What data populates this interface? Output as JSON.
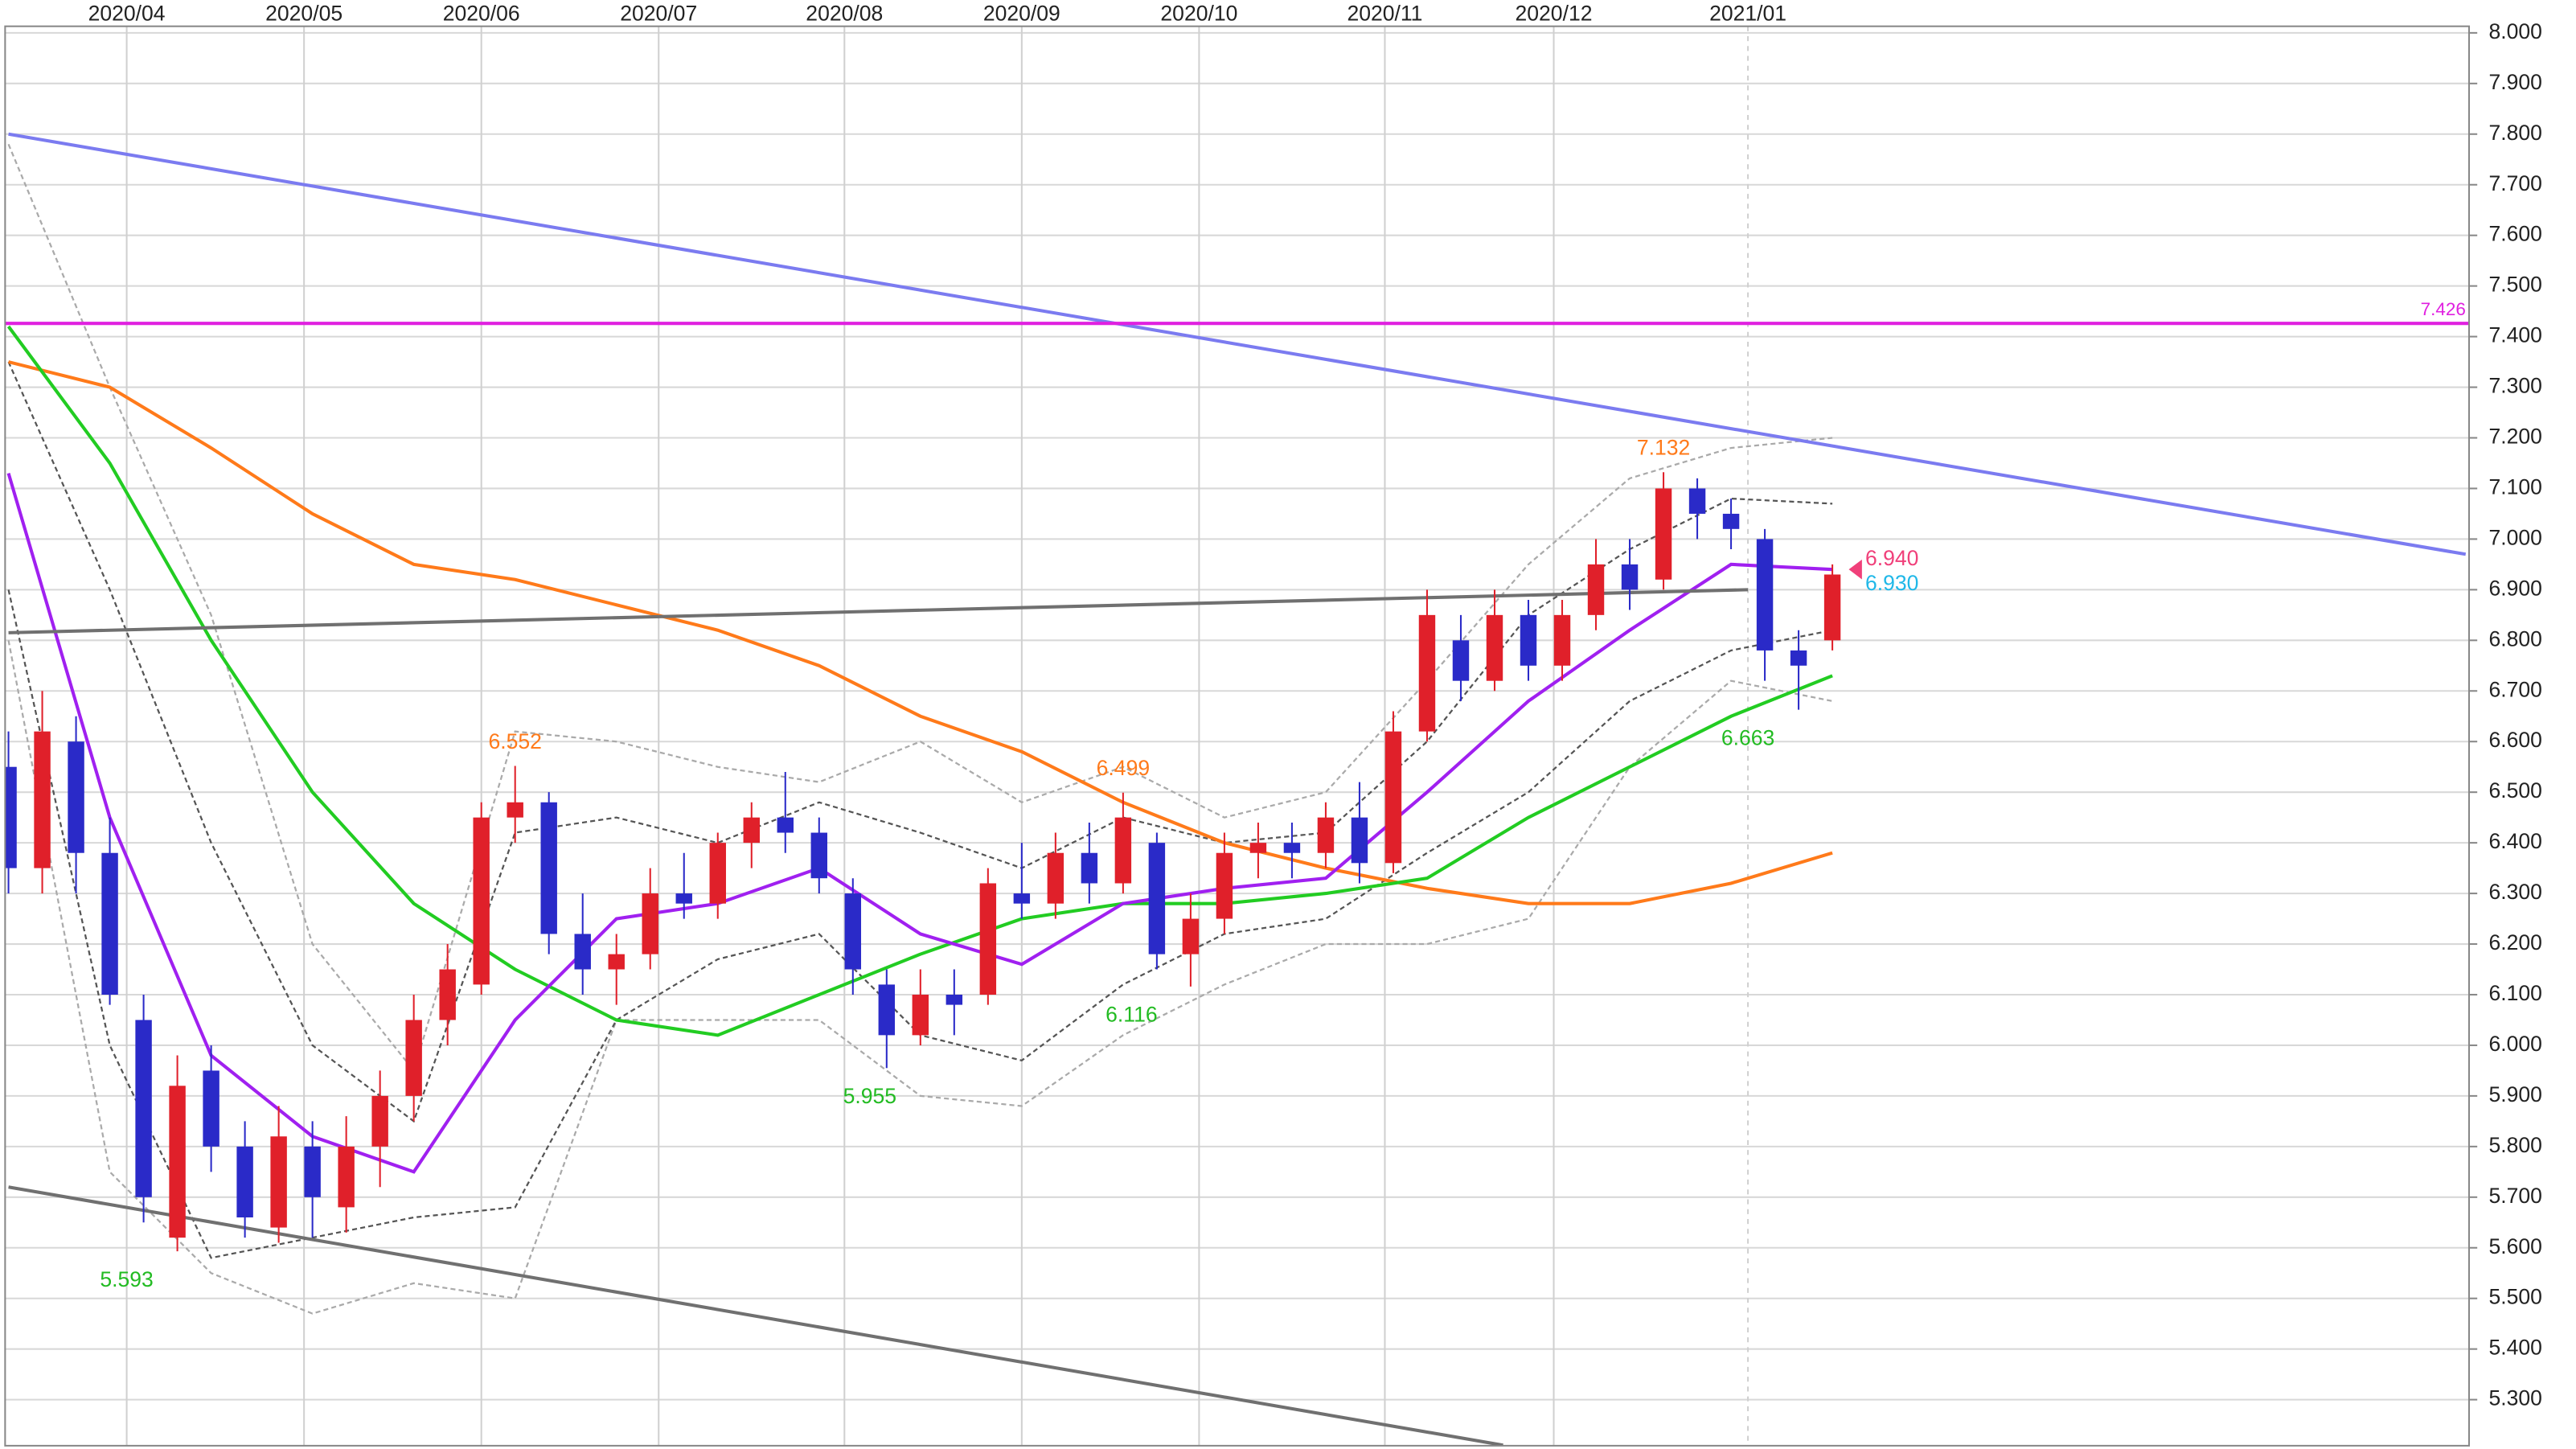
{
  "chart_data": {
    "type": "candlestick",
    "xlim": [
      -0.4,
      291.4
    ],
    "ylim": [
      5.209,
      8.013
    ],
    "xticks": [
      {
        "value": 14,
        "label": "2020/04"
      },
      {
        "value": 35,
        "label": "2020/05"
      },
      {
        "value": 56,
        "label": "2020/06"
      },
      {
        "value": 77,
        "label": "2020/07"
      },
      {
        "value": 99,
        "label": "2020/08"
      },
      {
        "value": 120,
        "label": "2020/09"
      },
      {
        "value": 141,
        "label": "2020/10"
      },
      {
        "value": 163,
        "label": "2020/11"
      },
      {
        "value": 183,
        "label": "2020/12"
      },
      {
        "value": 206,
        "label": "2021/01"
      }
    ],
    "yticks": [
      {
        "value": 5.3,
        "label": "5.300"
      },
      {
        "value": 5.4,
        "label": "5.400"
      },
      {
        "value": 5.5,
        "label": "5.500"
      },
      {
        "value": 5.6,
        "label": "5.600"
      },
      {
        "value": 5.7,
        "label": "5.700"
      },
      {
        "value": 5.8,
        "label": "5.800"
      },
      {
        "value": 5.9,
        "label": "5.900"
      },
      {
        "value": 6.0,
        "label": "6.000"
      },
      {
        "value": 6.1,
        "label": "6.100"
      },
      {
        "value": 6.2,
        "label": "6.200"
      },
      {
        "value": 6.3,
        "label": "6.300"
      },
      {
        "value": 6.4,
        "label": "6.400"
      },
      {
        "value": 6.5,
        "label": "6.500"
      },
      {
        "value": 6.6,
        "label": "6.600"
      },
      {
        "value": 6.7,
        "label": "6.700"
      },
      {
        "value": 6.8,
        "label": "6.800"
      },
      {
        "value": 6.9,
        "label": "6.900"
      },
      {
        "value": 7.0,
        "label": "7.000"
      },
      {
        "value": 7.1,
        "label": "7.100"
      },
      {
        "value": 7.2,
        "label": "7.200"
      },
      {
        "value": 7.3,
        "label": "7.300"
      },
      {
        "value": 7.4,
        "label": "7.400"
      },
      {
        "value": 7.5,
        "label": "7.500"
      },
      {
        "value": 7.6,
        "label": "7.600"
      },
      {
        "value": 7.7,
        "label": "7.700"
      },
      {
        "value": 7.8,
        "label": "7.800"
      },
      {
        "value": 7.9,
        "label": "7.900"
      },
      {
        "value": 8.0,
        "label": "8.000"
      }
    ],
    "grid": true,
    "up_color": "#e0202a",
    "down_color": "#2a2ac8",
    "candles": {
      "x": [
        0,
        4,
        8,
        12,
        16,
        20,
        24,
        28,
        32,
        36,
        40,
        44,
        48,
        52,
        56,
        60,
        64,
        68,
        72,
        76,
        80,
        84,
        88,
        92,
        96,
        100,
        104,
        108,
        112,
        116,
        120,
        124,
        128,
        132,
        136,
        140,
        144,
        148,
        152,
        156,
        160,
        164,
        168,
        172,
        176,
        180,
        184,
        188,
        192,
        196,
        200,
        204,
        208,
        212,
        216
      ],
      "open": [
        6.55,
        6.35,
        6.6,
        6.38,
        6.05,
        5.62,
        5.95,
        5.8,
        5.64,
        5.8,
        5.68,
        5.8,
        5.9,
        6.05,
        6.12,
        6.45,
        6.48,
        6.22,
        6.15,
        6.18,
        6.3,
        6.28,
        6.4,
        6.45,
        6.42,
        6.3,
        6.12,
        6.02,
        6.1,
        6.1,
        6.3,
        6.28,
        6.38,
        6.32,
        6.4,
        6.18,
        6.25,
        6.38,
        6.4,
        6.38,
        6.45,
        6.36,
        6.62,
        6.8,
        6.72,
        6.85,
        6.75,
        6.85,
        6.95,
        6.92,
        7.1,
        7.05,
        7.0,
        6.78,
        6.8
      ],
      "high": [
        6.62,
        6.7,
        6.65,
        6.45,
        6.1,
        5.98,
        6.0,
        5.85,
        5.88,
        5.85,
        5.86,
        5.95,
        6.1,
        6.2,
        6.48,
        6.552,
        6.5,
        6.3,
        6.22,
        6.35,
        6.38,
        6.42,
        6.48,
        6.54,
        6.45,
        6.33,
        6.15,
        6.15,
        6.15,
        6.35,
        6.4,
        6.42,
        6.44,
        6.499,
        6.42,
        6.3,
        6.42,
        6.44,
        6.44,
        6.48,
        6.52,
        6.66,
        6.9,
        6.85,
        6.9,
        6.88,
        6.88,
        7.0,
        7.0,
        7.132,
        7.12,
        7.08,
        7.02,
        6.82,
        6.95
      ],
      "low": [
        6.3,
        6.3,
        6.3,
        6.08,
        5.65,
        5.593,
        5.75,
        5.62,
        5.61,
        5.62,
        5.63,
        5.72,
        5.85,
        6.0,
        6.1,
        6.4,
        6.18,
        6.1,
        6.08,
        6.15,
        6.25,
        6.25,
        6.35,
        6.38,
        6.3,
        6.1,
        5.955,
        6.0,
        6.02,
        6.08,
        6.25,
        6.25,
        6.28,
        6.3,
        6.15,
        6.116,
        6.22,
        6.33,
        6.33,
        6.35,
        6.32,
        6.34,
        6.6,
        6.68,
        6.7,
        6.72,
        6.72,
        6.82,
        6.86,
        6.9,
        7.0,
        6.98,
        6.72,
        6.663,
        6.78
      ],
      "close": [
        6.35,
        6.62,
        6.38,
        6.1,
        5.7,
        5.92,
        5.8,
        5.66,
        5.82,
        5.7,
        5.8,
        5.9,
        6.05,
        6.15,
        6.45,
        6.48,
        6.22,
        6.15,
        6.18,
        6.3,
        6.28,
        6.4,
        6.45,
        6.42,
        6.33,
        6.15,
        6.02,
        6.1,
        6.08,
        6.32,
        6.28,
        6.38,
        6.32,
        6.45,
        6.18,
        6.25,
        6.38,
        6.4,
        6.38,
        6.45,
        6.36,
        6.62,
        6.85,
        6.72,
        6.85,
        6.75,
        6.85,
        6.95,
        6.9,
        7.1,
        7.05,
        7.02,
        6.78,
        6.75,
        6.93
      ]
    },
    "series": [
      {
        "color": "#aaaaaa",
        "dash": true,
        "x": [
          0,
          12,
          24,
          36,
          48,
          60,
          72,
          84,
          96,
          108,
          120,
          132,
          144,
          156,
          168,
          180,
          192,
          204,
          216
        ],
        "values": [
          7.78,
          7.3,
          6.85,
          6.2,
          5.95,
          6.62,
          6.6,
          6.55,
          6.52,
          6.6,
          6.48,
          6.55,
          6.45,
          6.5,
          6.72,
          6.95,
          7.12,
          7.18,
          7.2
        ]
      },
      {
        "color": "#aaaaaa",
        "dash": true,
        "x": [
          0,
          12,
          24,
          36,
          48,
          60,
          72,
          84,
          96,
          108,
          120,
          132,
          144,
          156,
          168,
          180,
          192,
          204,
          216
        ],
        "values": [
          6.8,
          5.75,
          5.55,
          5.47,
          5.53,
          5.5,
          6.05,
          6.05,
          6.05,
          5.9,
          5.88,
          6.02,
          6.12,
          6.2,
          6.2,
          6.25,
          6.55,
          6.72,
          6.68
        ]
      },
      {
        "color": "#555555",
        "dash": true,
        "x": [
          0,
          12,
          24,
          36,
          48,
          60,
          72,
          84,
          96,
          108,
          120,
          132,
          144,
          156,
          168,
          180,
          192,
          204,
          216
        ],
        "values": [
          7.35,
          6.9,
          6.4,
          6.0,
          5.85,
          6.42,
          6.45,
          6.4,
          6.48,
          6.42,
          6.35,
          6.45,
          6.4,
          6.42,
          6.6,
          6.85,
          6.98,
          7.08,
          7.07
        ]
      },
      {
        "color": "#555555",
        "dash": true,
        "x": [
          0,
          12,
          24,
          36,
          48,
          60,
          72,
          84,
          96,
          108,
          120,
          132,
          144,
          156,
          168,
          180,
          192,
          204,
          216
        ],
        "values": [
          6.9,
          6.0,
          5.58,
          5.62,
          5.66,
          5.68,
          6.05,
          6.17,
          6.22,
          6.02,
          5.97,
          6.12,
          6.22,
          6.25,
          6.38,
          6.5,
          6.68,
          6.78,
          6.82
        ]
      },
      {
        "color": "#ff7a1a",
        "dash": false,
        "x": [
          0,
          12,
          24,
          36,
          48,
          60,
          72,
          84,
          96,
          108,
          120,
          132,
          144,
          156,
          168,
          180,
          192,
          204,
          216
        ],
        "values": [
          7.35,
          7.3,
          7.18,
          7.05,
          6.95,
          6.92,
          6.87,
          6.82,
          6.75,
          6.65,
          6.58,
          6.48,
          6.4,
          6.35,
          6.31,
          6.28,
          6.28,
          6.32,
          6.38
        ]
      },
      {
        "color": "#22cc22",
        "dash": false,
        "x": [
          0,
          12,
          24,
          36,
          48,
          60,
          72,
          84,
          96,
          108,
          120,
          132,
          144,
          156,
          168,
          180,
          192,
          204,
          216
        ],
        "values": [
          7.42,
          7.15,
          6.8,
          6.5,
          6.28,
          6.15,
          6.05,
          6.02,
          6.1,
          6.18,
          6.25,
          6.28,
          6.28,
          6.3,
          6.33,
          6.45,
          6.55,
          6.65,
          6.73
        ]
      },
      {
        "color": "#a020f0",
        "dash": false,
        "x": [
          0,
          12,
          24,
          36,
          48,
          60,
          72,
          84,
          96,
          108,
          120,
          132,
          144,
          156,
          168,
          180,
          192,
          204,
          216
        ],
        "values": [
          7.13,
          6.45,
          5.98,
          5.82,
          5.75,
          6.05,
          6.25,
          6.28,
          6.35,
          6.22,
          6.16,
          6.28,
          6.31,
          6.33,
          6.5,
          6.68,
          6.82,
          6.95,
          6.94
        ]
      },
      {
        "color": "#7b7bf0",
        "dash": false,
        "x": [
          0,
          291
        ],
        "values": [
          7.8,
          6.97
        ]
      },
      {
        "color": "#707070",
        "dash": false,
        "x": [
          0,
          206
        ],
        "values": [
          6.815,
          6.9
        ]
      },
      {
        "color": "#707070",
        "dash": false,
        "x": [
          0,
          177
        ],
        "values": [
          5.72,
          5.21
        ]
      }
    ],
    "hline": {
      "value": 7.426,
      "color": "#e020e0"
    },
    "annotations": [
      {
        "x": 60,
        "value": 6.552,
        "label": "6.552",
        "color": "#ff7a1a"
      },
      {
        "x": 132,
        "value": 6.499,
        "label": "6.499",
        "color": "#ff7a1a"
      },
      {
        "x": 196,
        "value": 7.132,
        "label": "7.132",
        "color": "#ff7a1a"
      },
      {
        "x": 14,
        "value": 5.593,
        "label": "5.593",
        "color": "#22bb22"
      },
      {
        "x": 102,
        "value": 5.955,
        "label": "5.955",
        "color": "#22bb22"
      },
      {
        "x": 133,
        "value": 6.116,
        "label": "6.116",
        "color": "#22bb22"
      },
      {
        "x": 206,
        "value": 6.663,
        "label": "6.663",
        "color": "#22bb22"
      }
    ],
    "last_values": [
      {
        "value": 6.94,
        "label": "6.940",
        "color": "#f0407a"
      },
      {
        "value": 6.93,
        "label": "6.930",
        "color": "#20b8e8"
      }
    ]
  }
}
